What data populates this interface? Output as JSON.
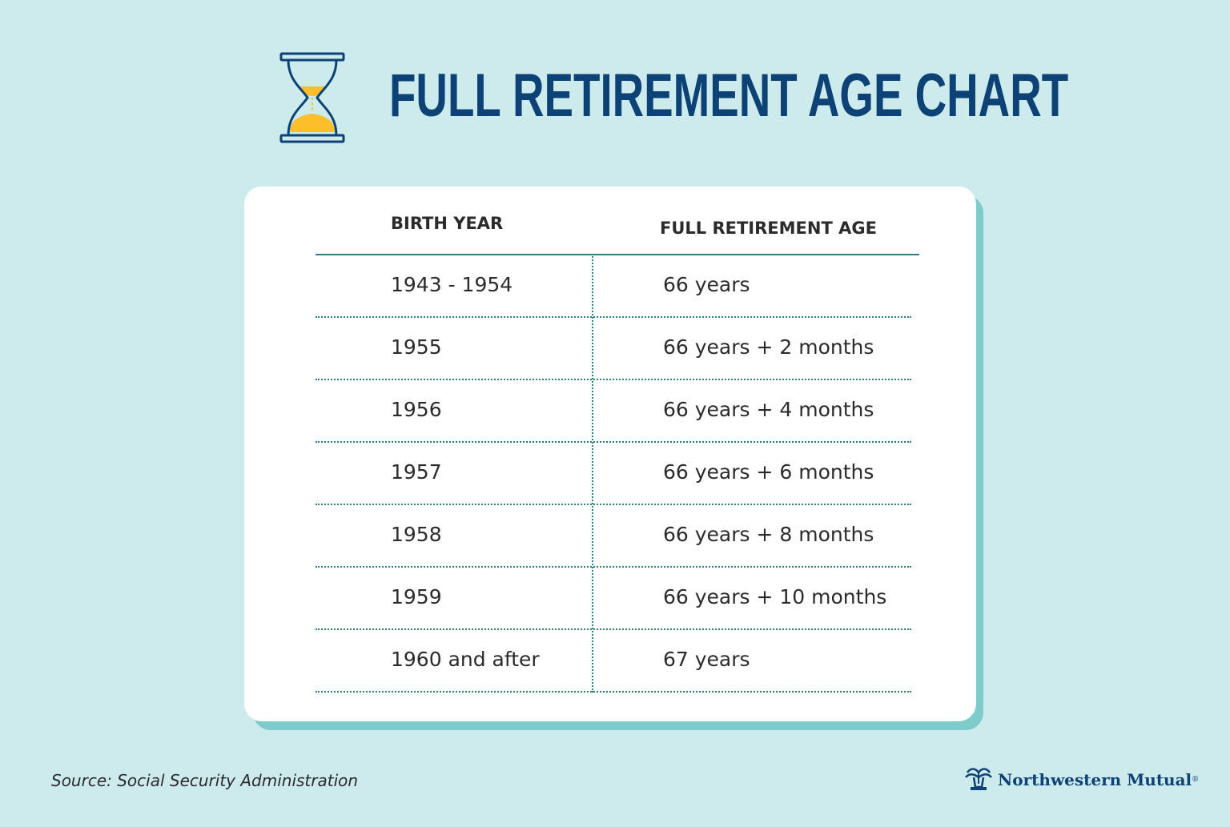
{
  "header": {
    "title": "FULL RETIREMENT AGE CHART",
    "icon": "hourglass-icon"
  },
  "colors": {
    "background": "#cdeaed",
    "title": "#0c4275",
    "accent_sand": "#fcbf2b",
    "card_shadow": "#7dcccb",
    "rule": "#2c7f86"
  },
  "chart_data": {
    "type": "table",
    "columns": [
      "BIRTH YEAR",
      "FULL RETIREMENT AGE"
    ],
    "rows": [
      [
        "1943 - 1954",
        "66 years"
      ],
      [
        "1955",
        "66 years + 2 months"
      ],
      [
        "1956",
        "66 years + 4 months"
      ],
      [
        "1957",
        "66 years + 6 months"
      ],
      [
        "1958",
        "66 years + 8 months"
      ],
      [
        "1959",
        "66 years + 10 months"
      ],
      [
        "1960 and after",
        "67 years"
      ]
    ]
  },
  "footer": {
    "source": "Source: Social Security Administration",
    "brand_name": "Northwestern Mutual",
    "brand_reg": "®",
    "brand_icon": "fountain-logo-icon"
  }
}
